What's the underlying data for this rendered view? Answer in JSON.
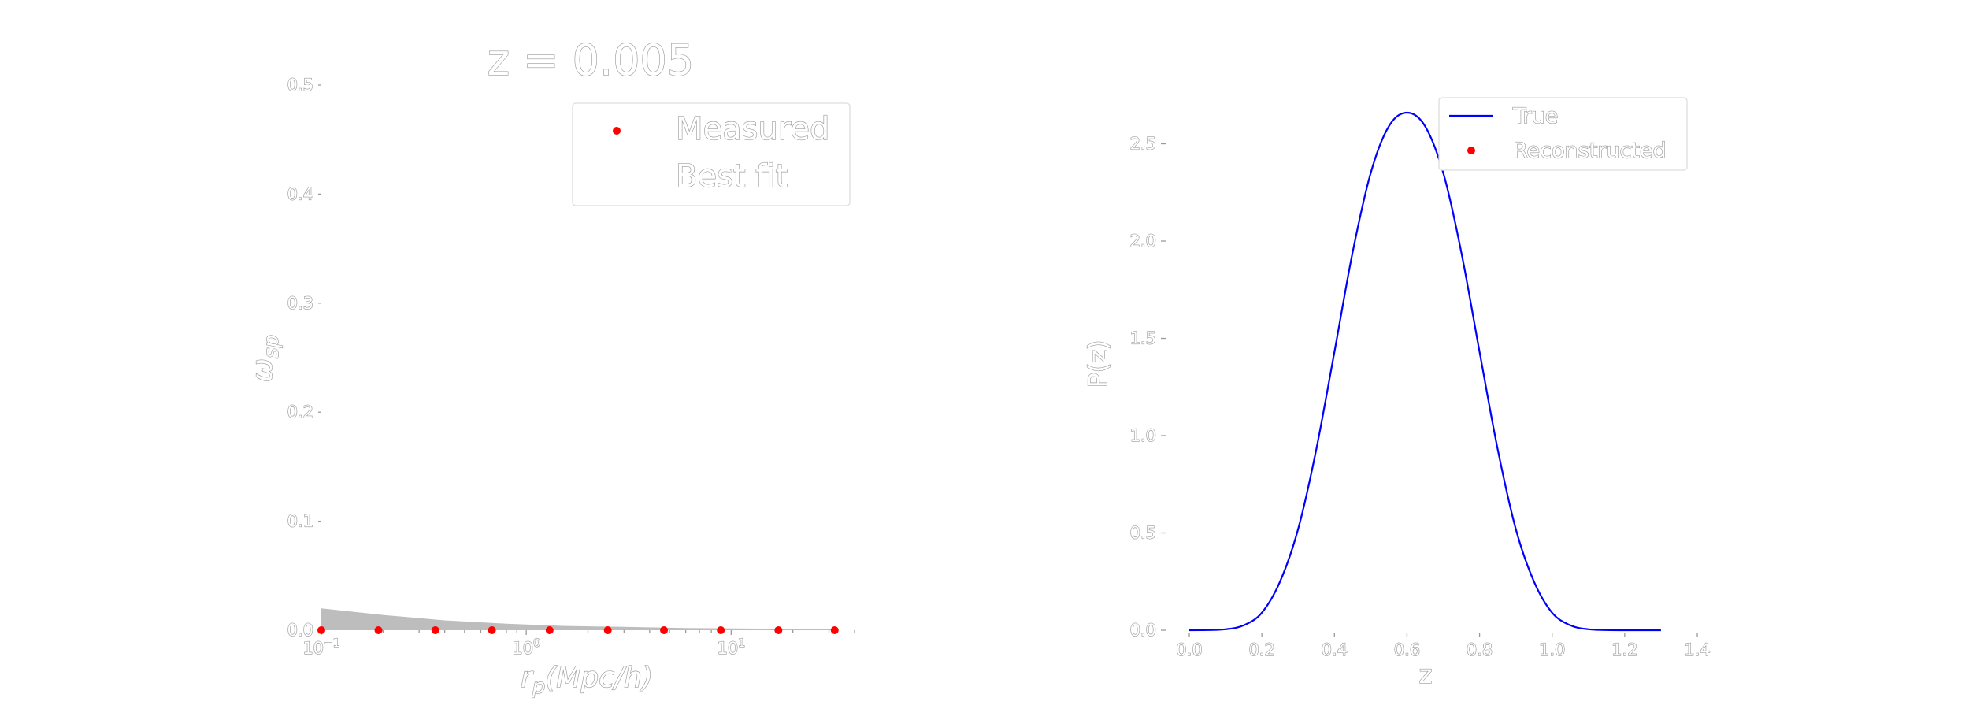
{
  "chart_data": [
    {
      "type": "scatter",
      "title": "z = 0.005",
      "xlabel": "r_p(Mpc/h)",
      "ylabel": "ω_sp",
      "xscale": "log",
      "xlim": [
        0.1,
        40
      ],
      "ylim": [
        0,
        0.5
      ],
      "y_ticks": [
        "0.0",
        "0.1",
        "0.2",
        "0.3",
        "0.4",
        "0.5"
      ],
      "x_ticks": [
        {
          "value": 0.1,
          "base": "10",
          "exp": "−1"
        },
        {
          "value": 1,
          "base": "10",
          "exp": "0"
        },
        {
          "value": 10,
          "base": "10",
          "exp": "1"
        }
      ],
      "grid": false,
      "legend_position": "top-right",
      "legend": [
        "Measured",
        "Best fit"
      ],
      "series": [
        {
          "name": "Measured",
          "kind": "points",
          "color": "#ff0000",
          "x": [
            0.1,
            0.19,
            0.36,
            0.68,
            1.3,
            2.5,
            4.7,
            8.9,
            17,
            32
          ],
          "y": [
            0.0,
            0.0,
            0.0,
            0.0,
            0.0,
            0.0,
            0.0,
            0.0,
            0.0,
            0.0
          ]
        },
        {
          "name": "Best fit",
          "kind": "band",
          "color": "#bdbdbd",
          "x": [
            0.1,
            0.2,
            0.4,
            0.8,
            1.5,
            3,
            6,
            12,
            25,
            32
          ],
          "y_upper": [
            0.02,
            0.014,
            0.009,
            0.006,
            0.004,
            0.003,
            0.002,
            0.0015,
            0.001,
            0.001
          ],
          "y_lower": [
            0,
            0,
            0,
            0,
            0,
            0,
            0,
            0,
            0,
            0
          ]
        }
      ]
    },
    {
      "type": "line",
      "title": "",
      "xlabel": "z",
      "ylabel": "P(z)",
      "xlim": [
        0.0,
        1.4
      ],
      "ylim": [
        0,
        2.66
      ],
      "x_ticks": [
        "0.0",
        "0.2",
        "0.4",
        "0.6",
        "0.8",
        "1.0",
        "1.2",
        "1.4"
      ],
      "y_ticks": [
        "0.0",
        "0.5",
        "1.0",
        "1.5",
        "2.0",
        "2.5"
      ],
      "grid": false,
      "legend_position": "top-right",
      "legend": [
        "True",
        "Reconstructed"
      ],
      "series": [
        {
          "name": "True",
          "kind": "line",
          "color": "#0000ff",
          "x": [
            0.0,
            0.05,
            0.1,
            0.15,
            0.2,
            0.25,
            0.3,
            0.35,
            0.4,
            0.45,
            0.5,
            0.55,
            0.6,
            0.65,
            0.7,
            0.75,
            0.8,
            0.85,
            0.9,
            0.95,
            1.0,
            1.05,
            1.1,
            1.15,
            1.2,
            1.25,
            1.3
          ],
          "y": [
            0.0,
            0.001,
            0.005,
            0.025,
            0.09,
            0.25,
            0.52,
            0.93,
            1.43,
            1.94,
            2.35,
            2.59,
            2.66,
            2.59,
            2.35,
            1.94,
            1.43,
            0.93,
            0.52,
            0.25,
            0.09,
            0.025,
            0.005,
            0.001,
            0.0,
            0.0,
            0.0
          ]
        },
        {
          "name": "Reconstructed",
          "kind": "points",
          "color": "#ff0000",
          "x": [],
          "y": []
        }
      ]
    }
  ]
}
